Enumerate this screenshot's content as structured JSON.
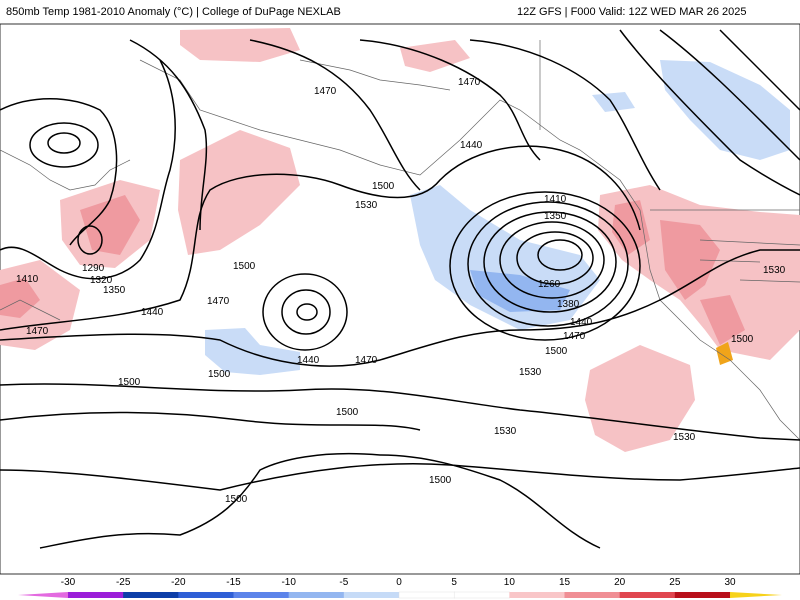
{
  "header": {
    "left_title": "850mb Temp 1981-2010 Anomaly (°C) | College of DuPage NEXLAB",
    "right_title": "12Z GFS | F000 Valid: 12Z WED MAR 26 2025"
  },
  "contour_labels": [
    "1470",
    "1470",
    "1440",
    "1500",
    "1530",
    "1410",
    "1350",
    "1290",
    "1320",
    "1350",
    "1410",
    "1470",
    "1500",
    "1440",
    "1470",
    "1440",
    "1470",
    "1500",
    "1260",
    "1380",
    "1440",
    "1470",
    "1500",
    "1530",
    "1530",
    "1500",
    "1530",
    "1500",
    "1530",
    "1500",
    "1500",
    "1500"
  ],
  "colorbar": {
    "ticks": [
      "-30",
      "-25",
      "-20",
      "-15",
      "-10",
      "-5",
      "0",
      "5",
      "10",
      "15",
      "20",
      "25",
      "30"
    ],
    "colors": [
      "#9b1ed9",
      "#0d3ea8",
      "#2f5fd6",
      "#5c84ea",
      "#93b6f0",
      "#c6dbf7",
      "#ffffff",
      "#ffffff",
      "#f9c6c8",
      "#f08f95",
      "#e0464f",
      "#b80f1a",
      "#f7a31a"
    ],
    "low_tip_color": "#e36ae0",
    "high_tip_color": "#f7d21a"
  }
}
